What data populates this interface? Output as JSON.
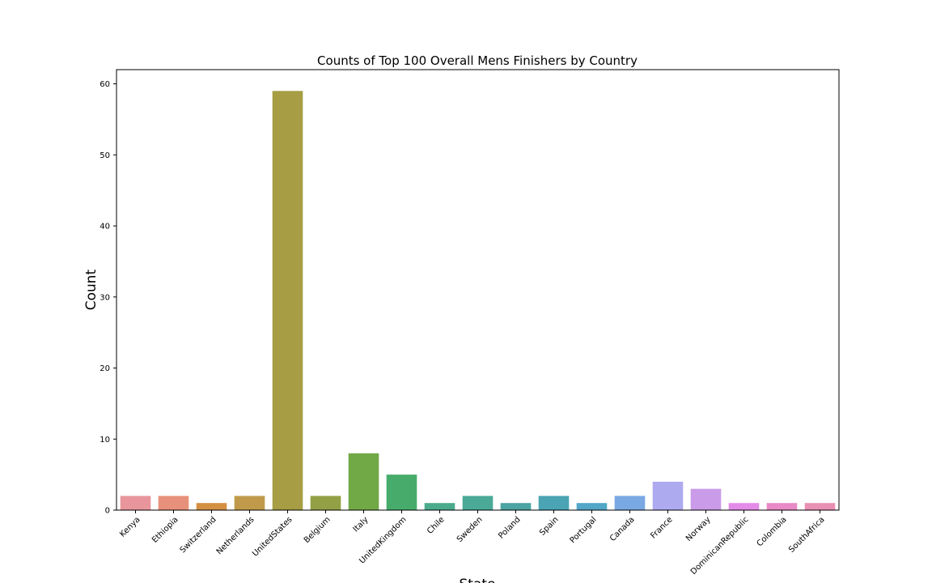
{
  "chart_data": {
    "type": "bar",
    "title": "Counts of Top 100 Overall Mens Finishers by Country",
    "xlabel": "State",
    "ylabel": "Count",
    "ylim": [
      0,
      62
    ],
    "yticks": [
      0,
      10,
      20,
      30,
      40,
      50,
      60
    ],
    "grid": false,
    "categories": [
      "Kenya",
      "Ethiopia",
      "Switzerland",
      "Netherlands",
      "UnitedStates",
      "Belgium",
      "Italy",
      "UnitedKingdom",
      "Chile",
      "Sweden",
      "Poland",
      "Spain",
      "Portugal",
      "Canada",
      "France",
      "Norway",
      "DominicanRepublic",
      "Colombia",
      "SouthAfrica"
    ],
    "values": [
      2,
      2,
      1,
      2,
      59,
      2,
      8,
      5,
      1,
      2,
      1,
      2,
      1,
      2,
      4,
      3,
      1,
      1,
      1
    ],
    "colors": [
      "#e8969c",
      "#e8917a",
      "#d58f42",
      "#c09a4a",
      "#a69d44",
      "#93a045",
      "#72a947",
      "#47ac6b",
      "#4aaa8c",
      "#4aa997",
      "#4ba3a2",
      "#4aa4b3",
      "#52a7c8",
      "#7aa8e3",
      "#adaaf0",
      "#c99be8",
      "#e38be8",
      "#e88ac6",
      "#e890b4"
    ]
  }
}
